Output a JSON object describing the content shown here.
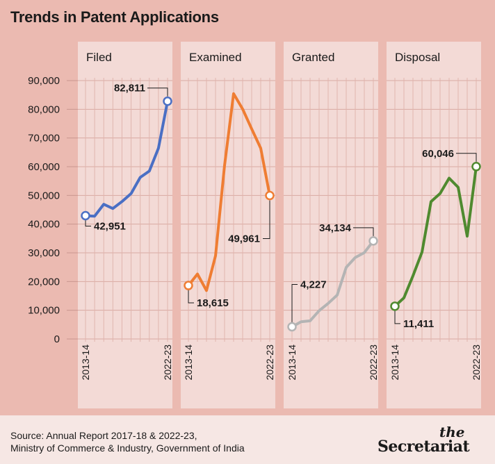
{
  "title": "Trends in Patent Applications",
  "footer": {
    "source_line1": "Source: Annual Report 2017-18 & 2022-23,",
    "source_line2": "Ministry of Commerce & Industry, Government of India",
    "brand_the": "the",
    "brand_name": "Secretariat"
  },
  "colors": {
    "background": "#ebbab1",
    "panel": "#f3dad6",
    "filed": "#4a6fc4",
    "examined": "#ef7d33",
    "granted": "#b4b4b4",
    "disposal": "#4f8a2f"
  },
  "chart_data": {
    "type": "line",
    "title": "Trends in Patent Applications",
    "y_ticks": [
      "0",
      "10,000",
      "20,000",
      "30,000",
      "40,000",
      "50,000",
      "60,000",
      "70,000",
      "80,000",
      "90,000"
    ],
    "ylim": [
      0,
      90000
    ],
    "x_range_labels": [
      "2013-14",
      "2022-23"
    ],
    "grid": true,
    "panels": [
      {
        "name": "Filed",
        "color": "#4a6fc4",
        "values": [
          42951,
          42763,
          46904,
          45444,
          47854,
          50659,
          56267,
          58503,
          66440,
          82811
        ],
        "start_label": "42,951",
        "end_label": "82,811"
      },
      {
        "name": "Examined",
        "color": "#ef7d33",
        "values": [
          18615,
          22631,
          16851,
          28967,
          60463,
          85426,
          80088,
          73165,
          66440,
          49961
        ],
        "start_label": "18,615",
        "end_label": "49,961"
      },
      {
        "name": "Granted",
        "color": "#b4b4b4",
        "values": [
          4227,
          5978,
          6326,
          9847,
          12387,
          15283,
          24936,
          28391,
          30074,
          34134
        ],
        "start_label": "4,227",
        "end_label": "34,134"
      },
      {
        "name": "Disposal",
        "color": "#4f8a2f",
        "values": [
          11411,
          14316,
          22000,
          30271,
          47854,
          50659,
          56000,
          52843,
          35800,
          60046
        ],
        "start_label": "11,411",
        "end_label": "60,046"
      }
    ]
  }
}
